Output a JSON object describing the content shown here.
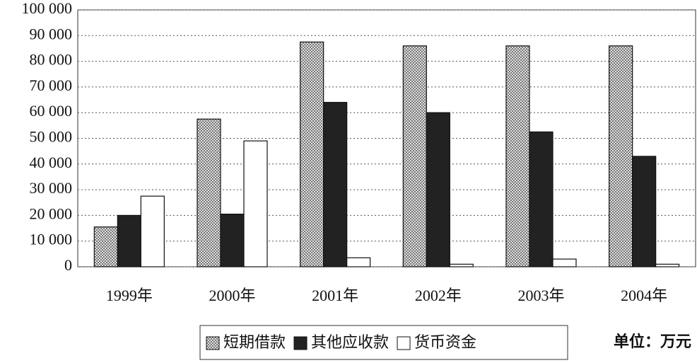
{
  "chart_data": {
    "type": "bar",
    "categories": [
      "1999年",
      "2000年",
      "2001年",
      "2002年",
      "2003年",
      "2004年"
    ],
    "series": [
      {
        "name": "短期借款",
        "color": "#bdbdbd",
        "values": [
          15500,
          57500,
          87500,
          86000,
          86000,
          86000
        ]
      },
      {
        "name": "其他应收款",
        "color": "#222222",
        "values": [
          20000,
          20500,
          64000,
          60000,
          52500,
          43000
        ]
      },
      {
        "name": "货币资金",
        "color": "#ffffff",
        "values": [
          27500,
          49000,
          3500,
          1000,
          3000,
          1000
        ]
      }
    ],
    "ylim": [
      0,
      100000
    ],
    "yticks": [
      0,
      {
        "value": 10000,
        "label": "10 000"
      },
      {
        "value": 20000,
        "label": "20 000"
      },
      {
        "value": 30000,
        "label": "30 000"
      },
      {
        "value": 40000,
        "label": "40 000"
      },
      {
        "value": 50000,
        "label": "50 000"
      },
      {
        "value": 60000,
        "label": "60 000"
      },
      {
        "value": 70000,
        "label": "70 000"
      },
      {
        "value": 80000,
        "label": "80 000"
      },
      {
        "value": 90000,
        "label": "90 000"
      },
      {
        "value": 100000,
        "label": "100 000"
      }
    ],
    "grid": true,
    "unit": "单位：万元"
  }
}
